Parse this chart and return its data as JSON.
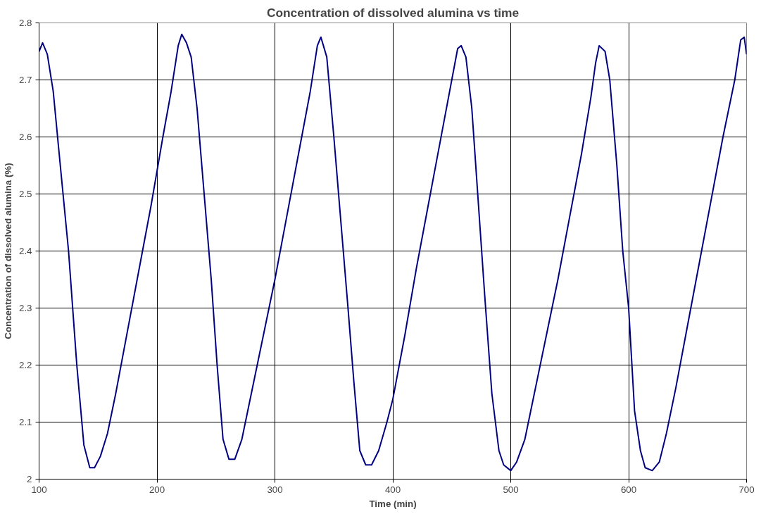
{
  "chart_data": {
    "type": "line",
    "title": "Concentration of dissolved alumina vs time",
    "xlabel": "Time (min)",
    "ylabel": "Concentration of dissolved alumina (%)",
    "series": [
      {
        "color": "#000080",
        "x": [
          100,
          103,
          107,
          112,
          118,
          125,
          132,
          138,
          143,
          147,
          152,
          158,
          165,
          175,
          185,
          195,
          205,
          212,
          218,
          221,
          225,
          229,
          234,
          240,
          246,
          251,
          256,
          261,
          266,
          272,
          280,
          290,
          300,
          310,
          320,
          330,
          336,
          339,
          344,
          350,
          356,
          362,
          367,
          372,
          377,
          382,
          388,
          395,
          400,
          410,
          420,
          430,
          440,
          450,
          455,
          458,
          462,
          467,
          472,
          478,
          484,
          490,
          494,
          500,
          505,
          512,
          520,
          530,
          540,
          550,
          560,
          568,
          572,
          575,
          580,
          584,
          590,
          595,
          600,
          605,
          610,
          614,
          620,
          626,
          632,
          640,
          650,
          660,
          670,
          680,
          690,
          695,
          698,
          700
        ],
        "values": [
          2.75,
          2.765,
          2.745,
          2.68,
          2.55,
          2.4,
          2.2,
          2.06,
          2.02,
          2.02,
          2.04,
          2.08,
          2.15,
          2.26,
          2.37,
          2.48,
          2.6,
          2.68,
          2.76,
          2.78,
          2.765,
          2.74,
          2.65,
          2.5,
          2.35,
          2.2,
          2.07,
          2.035,
          2.035,
          2.07,
          2.15,
          2.25,
          2.35,
          2.46,
          2.57,
          2.68,
          2.76,
          2.775,
          2.74,
          2.6,
          2.45,
          2.3,
          2.17,
          2.05,
          2.025,
          2.025,
          2.05,
          2.1,
          2.14,
          2.25,
          2.37,
          2.48,
          2.59,
          2.7,
          2.755,
          2.76,
          2.74,
          2.65,
          2.5,
          2.32,
          2.15,
          2.05,
          2.025,
          2.015,
          2.03,
          2.07,
          2.15,
          2.25,
          2.35,
          2.46,
          2.57,
          2.67,
          2.73,
          2.76,
          2.75,
          2.7,
          2.55,
          2.4,
          2.3,
          2.12,
          2.05,
          2.02,
          2.015,
          2.03,
          2.08,
          2.16,
          2.27,
          2.38,
          2.49,
          2.6,
          2.7,
          2.77,
          2.775,
          2.745
        ]
      }
    ],
    "xlim": [
      100,
      700
    ],
    "xticks": [
      100,
      200,
      300,
      400,
      500,
      600,
      700
    ],
    "ylim": [
      2,
      2.8
    ],
    "yticks": [
      2,
      {
        "value": 2.1,
        "label": "2.1"
      },
      {
        "value": 2.2,
        "label": "2.2"
      },
      {
        "value": 2.3,
        "label": "2.3"
      },
      {
        "value": 2.4,
        "label": "2.4"
      },
      {
        "value": 2.5,
        "label": "2.5"
      },
      {
        "value": 2.6,
        "label": "2.6"
      },
      {
        "value": 2.7,
        "label": "2.7"
      },
      {
        "value": 2.8,
        "label": "2.8"
      }
    ],
    "grid": true,
    "marker": "none",
    "line_style": "solid"
  }
}
